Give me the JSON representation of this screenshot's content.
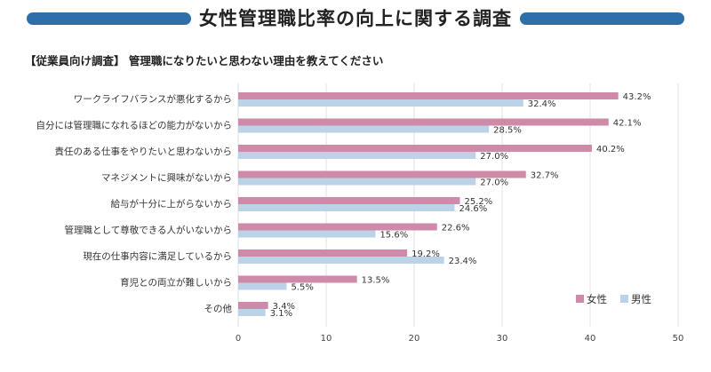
{
  "header": {
    "title": "女性管理職比率の向上に関する調査",
    "subtitle": "【従業員向け調査】 管理職になりたいと思わない理由を教えてください"
  },
  "colors": {
    "banner": "#2e6fa9",
    "female": "#cf8aa9",
    "male": "#bcd2e6",
    "grid": "#e0e0e0"
  },
  "chart_data": {
    "type": "bar",
    "orientation": "horizontal",
    "title": "",
    "xlabel": "",
    "ylabel": "",
    "xlim": [
      0,
      50
    ],
    "xticks": [
      0,
      10,
      20,
      30,
      40,
      50
    ],
    "grid": true,
    "legend_position": "bottom-right",
    "categories": [
      "ワークライフバランスが悪化するから",
      "自分には管理職になれるほどの能力がないから",
      "責任のある仕事をやりたいと思わないから",
      "マネジメントに興味がないから",
      "給与が十分に上がらないから",
      "管理職として尊敬できる人がいないから",
      "現在の仕事内容に満足しているから",
      "育児との両立が難しいから",
      "その他"
    ],
    "series": [
      {
        "name": "女性",
        "values": [
          43.2,
          42.1,
          40.2,
          32.7,
          25.2,
          22.6,
          19.2,
          13.5,
          3.4
        ],
        "labels": [
          "43.2%",
          "42.1%",
          "40.2%",
          "32.7%",
          "25.2%",
          "22.6%",
          "19.2%",
          "13.5%",
          "3.4%"
        ]
      },
      {
        "name": "男性",
        "values": [
          32.4,
          28.5,
          27.0,
          27.0,
          24.6,
          15.6,
          23.4,
          5.5,
          3.1
        ],
        "labels": [
          "32.4%",
          "28.5%",
          "27.0%",
          "27.0%",
          "24.6%",
          "15.6%",
          "23.4%",
          "5.5%",
          "3.1%"
        ]
      }
    ]
  }
}
